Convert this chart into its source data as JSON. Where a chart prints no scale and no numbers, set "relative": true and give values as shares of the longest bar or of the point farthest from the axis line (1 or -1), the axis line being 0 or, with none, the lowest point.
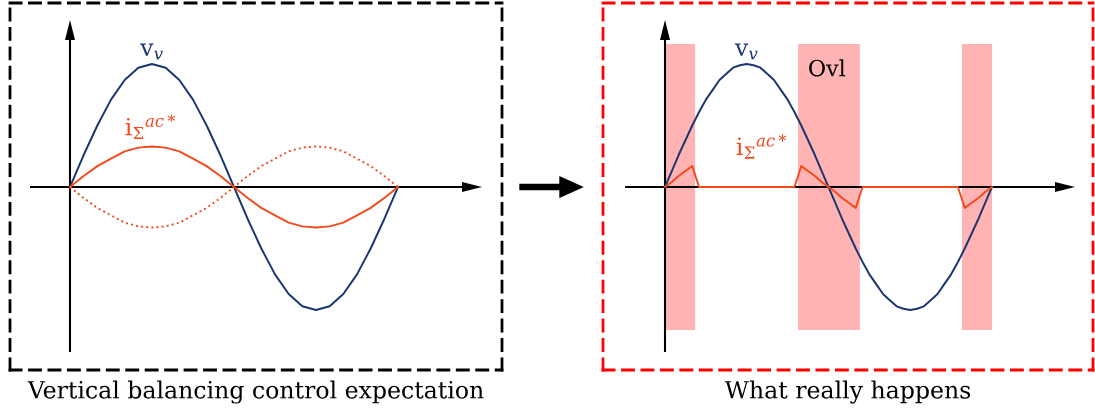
{
  "chart_data": [
    {
      "type": "line",
      "relative": true,
      "xlabel": "Vertical balancing control expectation",
      "legend": false,
      "categories": [
        null,
        null,
        null,
        null,
        null,
        null,
        null,
        null,
        null,
        null,
        null,
        null,
        null,
        null,
        null,
        null,
        null,
        null,
        null,
        null,
        null,
        null,
        null,
        null,
        null
      ],
      "series": [
        {
          "name": "v$_{v}$",
          "color": "#1a3570",
          "line_style": "solid",
          "values": [
            0,
            0.26,
            0.5,
            0.71,
            0.87,
            0.97,
            1,
            0.97,
            0.87,
            0.71,
            0.5,
            0.26,
            0,
            -0.26,
            -0.5,
            -0.71,
            -0.87,
            -0.97,
            -1,
            -0.97,
            -0.87,
            -0.71,
            -0.5,
            -0.26,
            0
          ]
        },
        {
          "name": "i$_{Σ}$$^{ac*}$",
          "color": "#f24a1d",
          "line_style": "solid",
          "values": [
            0,
            0.09,
            0.17,
            0.23,
            0.29,
            0.32,
            0.33,
            0.32,
            0.29,
            0.23,
            0.17,
            0.09,
            0,
            -0.09,
            -0.17,
            -0.23,
            -0.29,
            -0.32,
            -0.33,
            -0.32,
            -0.29,
            -0.23,
            -0.17,
            -0.09,
            0
          ]
        },
        {
          "color": "#f24a1d",
          "line_style": "dotted",
          "values": [
            0,
            -0.09,
            -0.17,
            -0.23,
            -0.29,
            -0.32,
            -0.33,
            -0.32,
            -0.29,
            -0.23,
            -0.17,
            -0.09,
            0,
            0.09,
            0.17,
            0.23,
            0.29,
            0.32,
            0.33,
            0.32,
            0.29,
            0.23,
            0.17,
            0.09,
            0
          ]
        }
      ]
    },
    {
      "type": "line",
      "relative": true,
      "xlabel": "What really happens",
      "legend": false,
      "categories": [
        null,
        null,
        null,
        null,
        null,
        null,
        null,
        null,
        null,
        null,
        null,
        null,
        null,
        null,
        null,
        null,
        null,
        null,
        null,
        null,
        null,
        null,
        null,
        null,
        null,
        null,
        null,
        null,
        null,
        null,
        null,
        null,
        null,
        null,
        null,
        null,
        null,
        null,
        null,
        null,
        null,
        null,
        null,
        null,
        null,
        null,
        null,
        null,
        null
      ],
      "annotations": [
        "Ovl"
      ],
      "series": [
        {
          "name": "v$_{v}$",
          "color": "#1a3570",
          "line_style": "solid",
          "values": [
            0,
            0.13,
            0.26,
            0.38,
            0.5,
            0.61,
            0.71,
            0.79,
            0.87,
            0.92,
            0.97,
            0.99,
            1,
            0.99,
            0.97,
            0.92,
            0.87,
            0.79,
            0.71,
            0.61,
            0.5,
            0.38,
            0.26,
            0.13,
            0,
            -0.13,
            -0.26,
            -0.38,
            -0.5,
            -0.61,
            -0.71,
            -0.79,
            -0.87,
            -0.92,
            -0.97,
            -0.99,
            -1,
            -0.99,
            -0.97,
            -0.92,
            -0.87,
            -0.79,
            -0.71,
            -0.61,
            -0.5,
            -0.38,
            -0.26,
            -0.13,
            0
          ]
        },
        {
          "name": "i$_{Σ}$$^{ac*}$",
          "color": "#f24a1d",
          "line_style": "solid",
          "values": [
            0,
            0.04,
            0.09,
            0.13,
            0.17,
            0,
            0,
            0,
            0,
            0,
            0,
            0,
            0,
            0,
            0,
            0,
            0,
            0,
            0,
            0,
            0.17,
            0.13,
            0.09,
            0.04,
            0,
            -0.04,
            -0.09,
            -0.13,
            -0.17,
            0,
            0,
            0,
            0,
            0,
            0,
            0,
            0,
            0,
            0,
            0,
            0,
            0,
            0,
            0,
            -0.17,
            -0.13,
            -0.09,
            -0.04,
            0
          ]
        }
      ]
    }
  ]
}
